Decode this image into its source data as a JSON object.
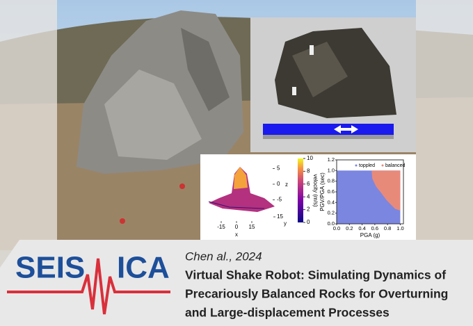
{
  "banner": {
    "logo_left": "SEIS",
    "logo_right": "ICA",
    "citation": "Chen al., 2024",
    "title_lines": [
      "Virtual Shake Robot: Simulating Dynamics of",
      "Precariously Balanced Rocks for Overturning",
      "and Large-displacement Processes"
    ]
  },
  "chart_data": [
    {
      "type": "surface3d",
      "xlabel": "x",
      "ylabel": "y",
      "zlabel": "z",
      "xticks": [
        -15,
        0,
        15
      ],
      "yticks": [
        15
      ],
      "zticks": [
        5,
        0,
        -5
      ],
      "colorbar_label": "velocity (m/s)",
      "clim": [
        0,
        10
      ],
      "cticks": [
        0,
        2,
        4,
        6,
        8,
        10
      ]
    },
    {
      "type": "region",
      "xlabel": "PGA (g)",
      "ylabel": "PGV/PGA (sec)",
      "xlim": [
        0,
        1.05
      ],
      "ylim": [
        0,
        1.2
      ],
      "xticks": [
        {
          "value": 0,
          "label": "0.0"
        },
        {
          "value": 0.2,
          "label": "0.2"
        },
        {
          "value": 0.4,
          "label": "0.4"
        },
        {
          "value": 0.6,
          "label": "0.6"
        },
        {
          "value": 0.8,
          "label": "0.8"
        },
        {
          "value": 1,
          "label": "1.0"
        }
      ],
      "yticks": [
        {
          "value": 0,
          "label": "0.0"
        },
        {
          "value": 0.2,
          "label": "0.2"
        },
        {
          "value": 0.4,
          "label": "0.4"
        },
        {
          "value": 0.6,
          "label": "0.6"
        },
        {
          "value": 0.8,
          "label": "0.8"
        },
        {
          "value": 1,
          "label": "1.0"
        },
        {
          "value": 1.2,
          "label": "1.2"
        }
      ],
      "series": [
        {
          "name": "toppled",
          "color": "#7b86e0"
        },
        {
          "name": "balanced",
          "color": "#e88a7a"
        }
      ],
      "boundary_x": [
        0.55,
        0.56,
        0.62,
        0.7,
        0.78,
        0.86,
        0.92,
        1.0
      ],
      "boundary_y": [
        1.0,
        0.85,
        0.7,
        0.58,
        0.45,
        0.35,
        0.28,
        0.25
      ],
      "region_top": 1.0
    }
  ]
}
